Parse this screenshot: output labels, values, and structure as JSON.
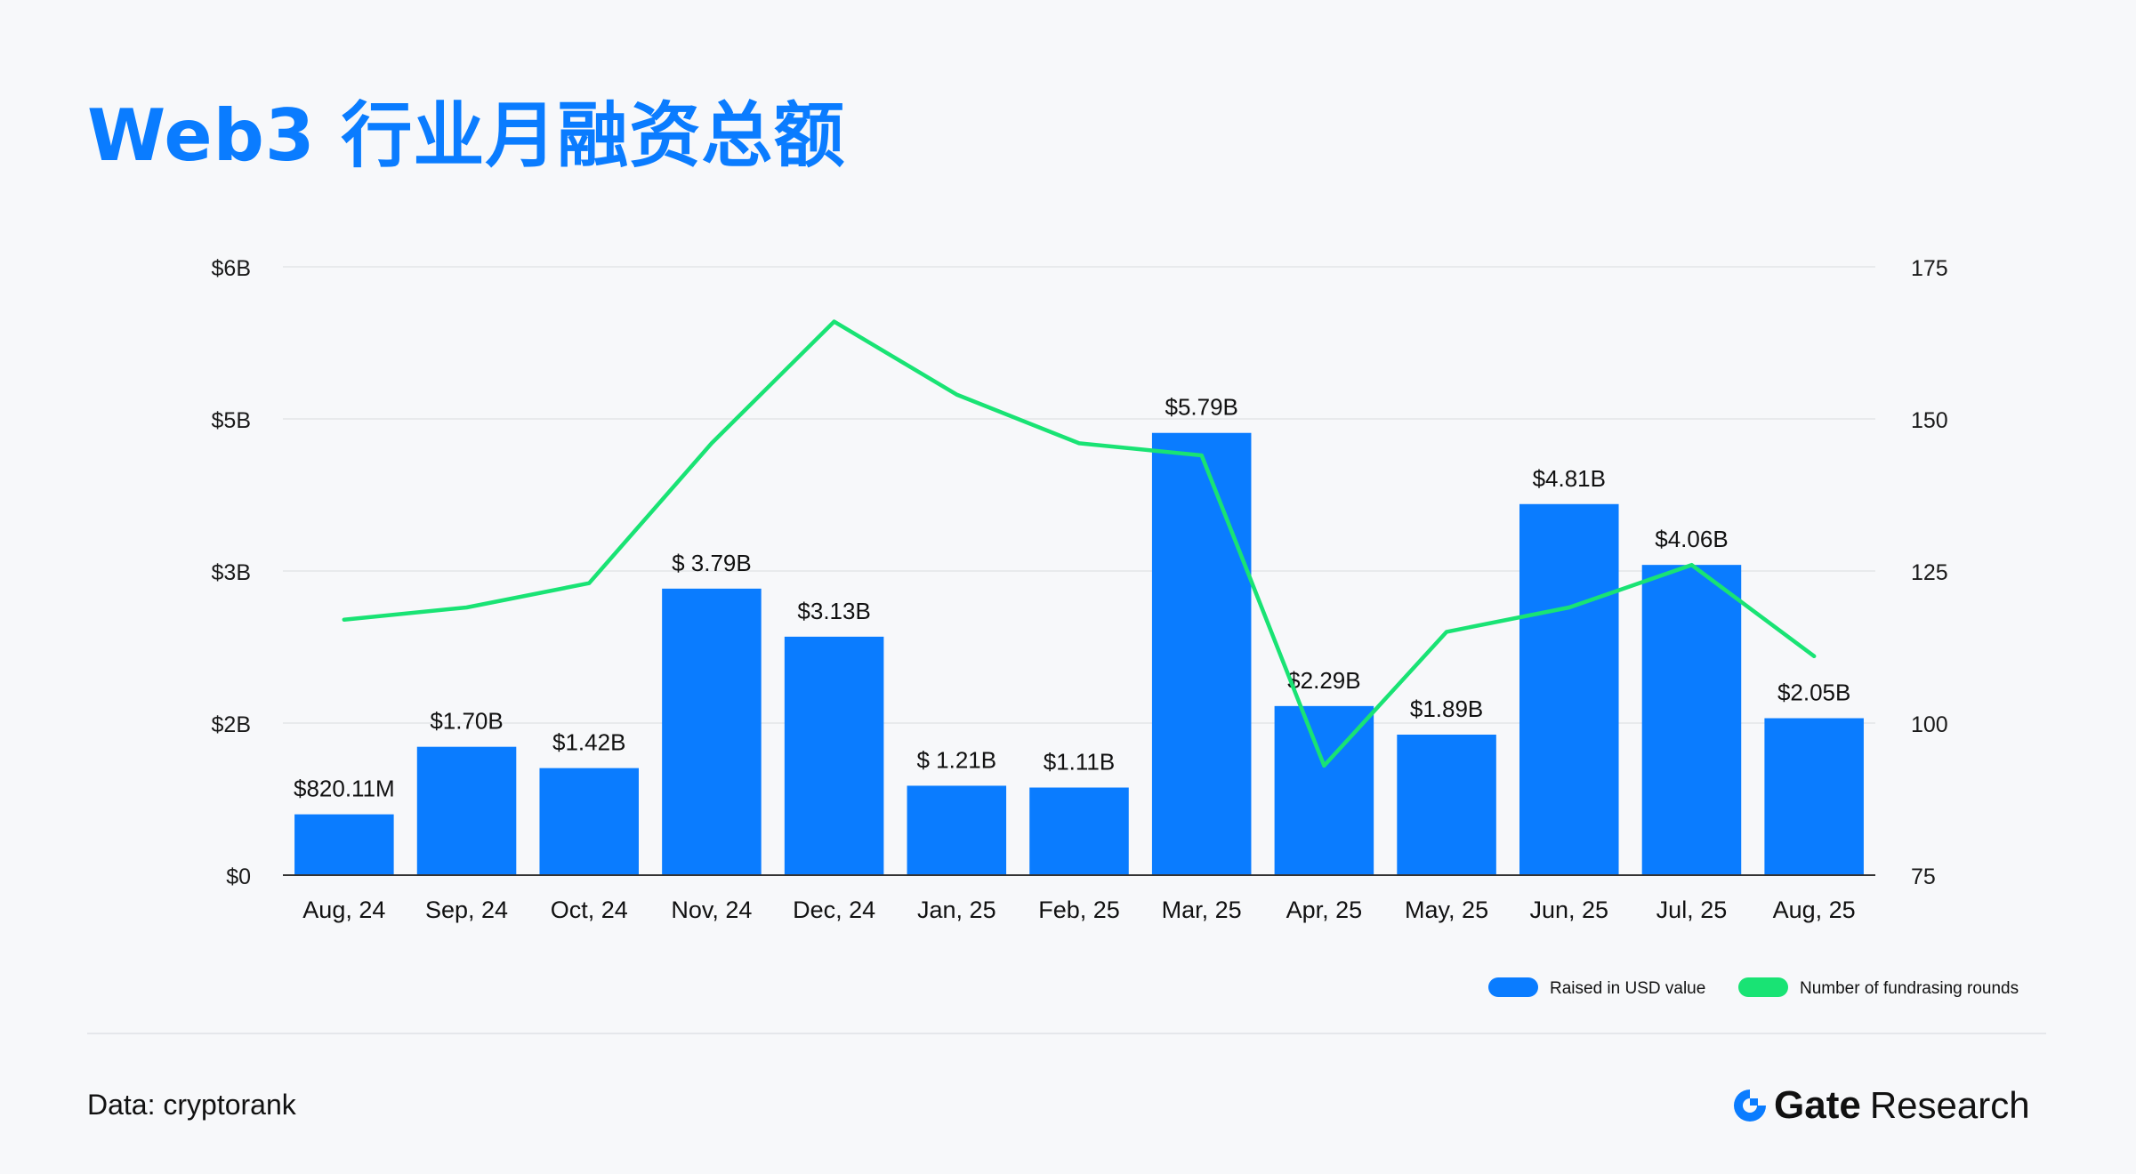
{
  "title": "Web3 行业月融资总额",
  "source_label": "Data: cryptorank",
  "brand": {
    "name": "Gate",
    "suffix": "Research",
    "logo_icon": "gate-logo-icon"
  },
  "colors": {
    "title": "#0a7cff",
    "bar": "#0a7cff",
    "line": "#19e374",
    "grid": "#e3e5e8"
  },
  "chart_data": {
    "type": "bar",
    "title": "Web3 行业月融资总额",
    "categories": [
      "Aug, 24",
      "Sep, 24",
      "Oct, 24",
      "Nov, 24",
      "Dec, 24",
      "Jan, 25",
      "Feb, 25",
      "Mar, 25",
      "Apr, 25",
      "May, 25",
      "Jun, 25",
      "Jul, 25",
      "Aug, 25"
    ],
    "y_left_ticks": [
      "$6B",
      "$5B",
      "$3B",
      "$2B",
      "$0"
    ],
    "y_right_ticks": [
      "175",
      "150",
      "125",
      "100",
      "75"
    ],
    "y_right_range": [
      75,
      175
    ],
    "bar_value_fraction": [
      0.1,
      0.211,
      0.176,
      0.471,
      0.392,
      0.147,
      0.144,
      0.727,
      0.278,
      0.231,
      0.61,
      0.51,
      0.258
    ],
    "series": [
      {
        "name": "Raised in USD value",
        "type": "bar",
        "axis": "left",
        "value_labels": [
          "$820.11M",
          "$1.70B",
          "$1.42B",
          "$ 3.79B",
          "$3.13B",
          "$ 1.21B",
          "$1.11B",
          "$5.79B",
          "$2.29B",
          "$1.89B",
          "$4.81B",
          "$4.06B",
          "$2.05B"
        ]
      },
      {
        "name": "Number of fundrasing rounds",
        "type": "line",
        "axis": "right",
        "values": [
          117,
          119,
          123,
          146,
          166,
          154,
          146,
          144,
          93,
          115,
          119,
          126,
          111
        ]
      }
    ],
    "legend_position": "bottom-right",
    "grid": true
  }
}
